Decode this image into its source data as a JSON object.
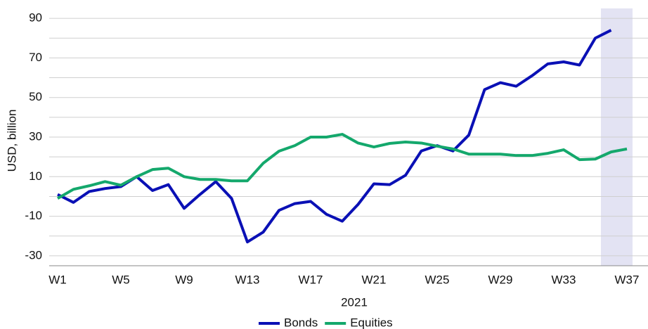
{
  "chart_data": {
    "type": "line",
    "x_label": "2021",
    "y_label": "USD, billion",
    "categories": [
      "W1",
      null,
      null,
      null,
      "W5",
      null,
      null,
      null,
      "W9",
      null,
      null,
      null,
      "W13",
      null,
      null,
      null,
      "W17",
      null,
      null,
      null,
      "W21",
      null,
      null,
      null,
      "W25",
      null,
      null,
      null,
      "W29",
      null,
      null,
      null,
      "W33",
      null,
      null,
      null,
      "W37"
    ],
    "series": [
      {
        "name": "Bonds",
        "color": "#0a10b5",
        "values": [
          1,
          -3,
          2.5,
          4,
          5,
          10,
          3,
          6,
          -6,
          1,
          7.5,
          -1,
          -23,
          -18,
          -7,
          -3.6,
          -2.5,
          -9,
          -12.5,
          -4,
          6.4,
          6,
          10.7,
          23,
          25.7,
          23,
          31,
          54,
          57.5,
          55.7,
          61,
          67,
          68,
          66.4,
          80,
          84,
          null
        ]
      },
      {
        "name": "Equities",
        "color": "#14a86c",
        "values": [
          -1,
          3.6,
          5.4,
          7.5,
          5.7,
          10,
          13.6,
          14.3,
          10,
          8.6,
          8.6,
          7.9,
          7.9,
          16.8,
          22.9,
          25.7,
          30,
          30,
          31.4,
          27,
          25,
          26.8,
          27.5,
          27,
          25.4,
          24,
          21.4,
          21.4,
          21.4,
          20.7,
          20.7,
          21.8,
          23.6,
          18.6,
          18.9,
          22.5,
          24
        ]
      }
    ],
    "ylim": [
      -35,
      95
    ],
    "yticks": [
      -30,
      -10,
      10,
      30,
      50,
      70,
      90
    ],
    "minor_yticks": [
      -20,
      0,
      20,
      40,
      60,
      80
    ],
    "grid": true,
    "legend": "bottom"
  }
}
